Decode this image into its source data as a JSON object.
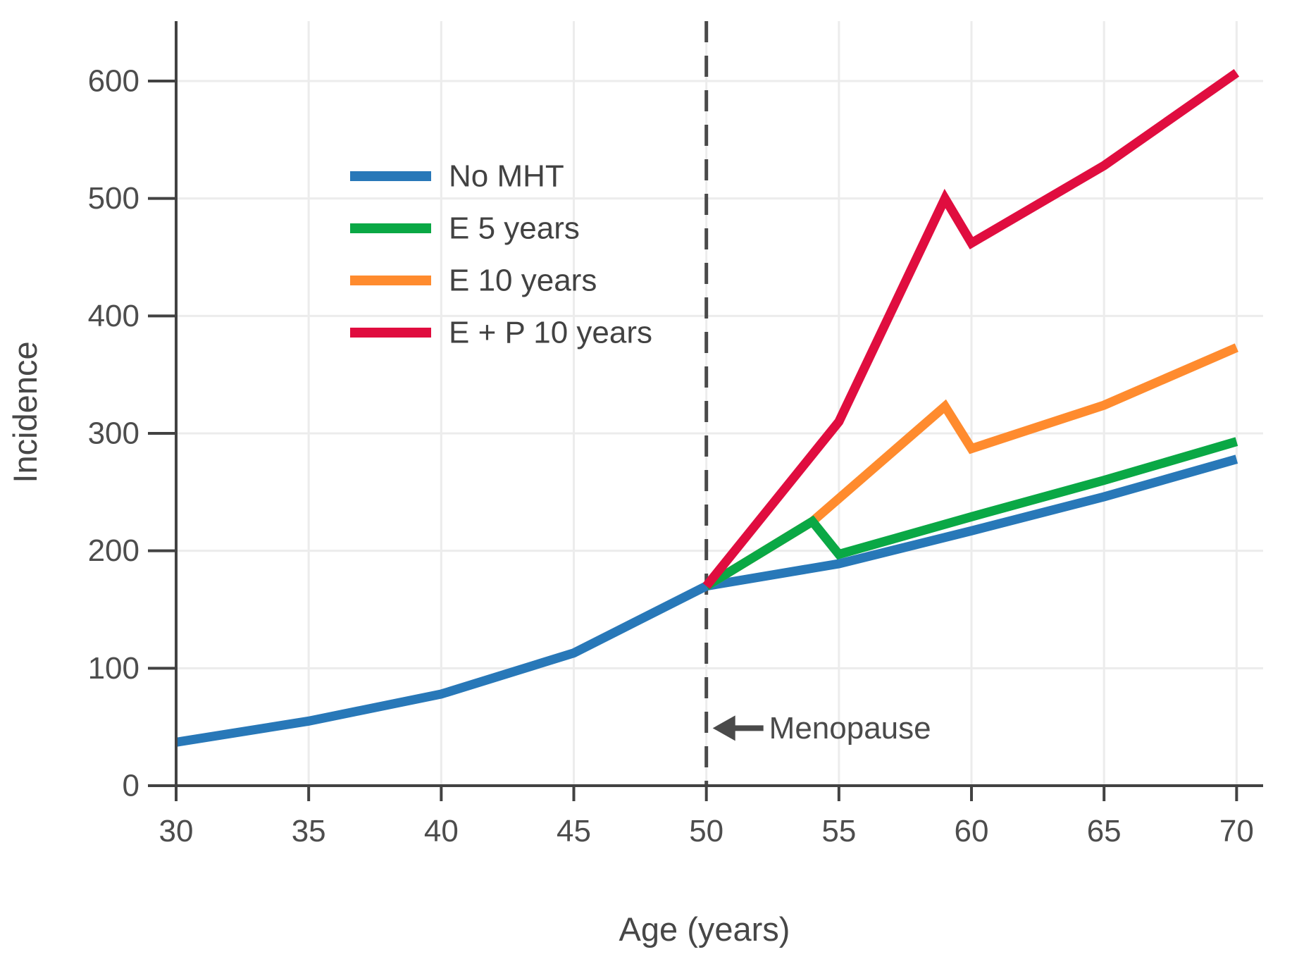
{
  "chart_data": {
    "type": "line",
    "title": "",
    "xlabel": "Age (years)",
    "ylabel": "Incidence",
    "x_ticks": [
      30,
      35,
      40,
      45,
      50,
      55,
      60,
      65,
      70
    ],
    "y_ticks": [
      0,
      100,
      200,
      300,
      400,
      500,
      600
    ],
    "xlim": [
      30,
      71
    ],
    "ylim": [
      0,
      651
    ],
    "grid": true,
    "grid_color": "#ececec",
    "axis_color": "#424242",
    "legend_position": "upper-left-inside",
    "series": [
      {
        "name": "No MHT",
        "color": "#2878b8",
        "x": [
          30,
          35,
          40,
          45,
          50,
          55,
          60,
          65,
          70
        ],
        "y": [
          37,
          55,
          78,
          113,
          170,
          189,
          217,
          246,
          278
        ]
      },
      {
        "name": "E 5 years",
        "color": "#0aa845",
        "x": [
          50,
          54,
          55,
          60,
          65,
          70
        ],
        "y": [
          170,
          225,
          197,
          229,
          260,
          293
        ]
      },
      {
        "name": "E 10 years",
        "color": "#ff8b2e",
        "x": [
          50,
          54,
          59,
          60,
          65,
          70
        ],
        "y": [
          170,
          225,
          323,
          287,
          324,
          373
        ]
      },
      {
        "name": "E + P 10 years",
        "color": "#e00d3f",
        "x": [
          50,
          55,
          59,
          60,
          65,
          70
        ],
        "y": [
          170,
          310,
          500,
          462,
          528,
          607
        ]
      }
    ],
    "draw_order": [
      "No MHT",
      "E 10 years",
      "E 5 years",
      "E + P 10 years"
    ],
    "annotations": [
      {
        "type": "vline",
        "x": 50,
        "line_style": "dashed",
        "color": "#4a4a4a"
      },
      {
        "type": "arrow-label",
        "text": "Menopause",
        "x": 50,
        "y": 49,
        "direction": "left",
        "color": "#4a4a4a"
      }
    ]
  }
}
